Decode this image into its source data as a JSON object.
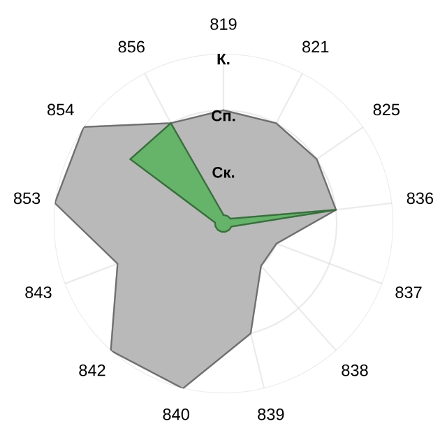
{
  "chart_data": {
    "type": "radar",
    "categories": [
      "819",
      "821",
      "825",
      "836",
      "837",
      "838",
      "839",
      "840",
      "842",
      "843",
      "853",
      "854",
      "856"
    ],
    "ylim": [
      0,
      3
    ],
    "yticks": [
      {
        "value": 1,
        "label": "Ск."
      },
      {
        "value": 2,
        "label": "Сп."
      },
      {
        "value": 3,
        "label": "К."
      }
    ],
    "grid": true,
    "series": [
      {
        "color": "#b9b9b9",
        "values": [
          2,
          2,
          2,
          2,
          1,
          1,
          2,
          3,
          3,
          2,
          3,
          3,
          2
        ]
      },
      {
        "color": "#66b36a",
        "values": [
          0.15,
          0.15,
          0.15,
          2,
          0.15,
          0.15,
          0.15,
          0.15,
          0.15,
          0.15,
          0.15,
          2,
          2
        ]
      }
    ]
  }
}
